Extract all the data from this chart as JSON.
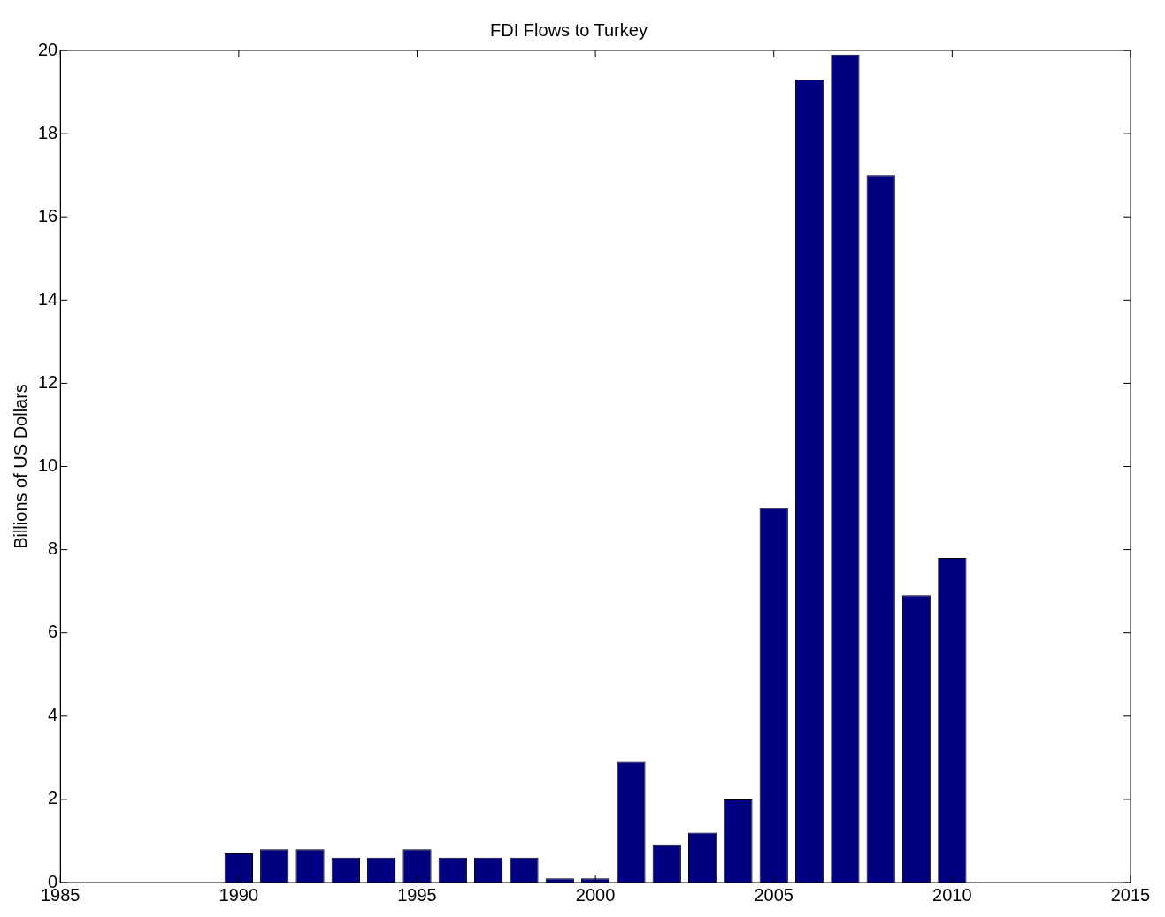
{
  "chart_data": {
    "type": "bar",
    "title": "FDI Flows to Turkey",
    "ylabel": "Billions of US Dollars",
    "x": [
      1990,
      1991,
      1992,
      1993,
      1994,
      1995,
      1996,
      1997,
      1998,
      1999,
      2000,
      2001,
      2002,
      2003,
      2004,
      2005,
      2006,
      2007,
      2008,
      2009,
      2010
    ],
    "values": [
      0.7,
      0.8,
      0.8,
      0.6,
      0.6,
      0.8,
      0.6,
      0.6,
      0.6,
      0.1,
      0.1,
      2.9,
      0.9,
      1.2,
      2.0,
      9.0,
      19.3,
      19.9,
      17.0,
      6.9,
      7.8
    ],
    "color": "#000080",
    "xlim": [
      1985,
      2015
    ],
    "xticks": [
      1985,
      1990,
      1995,
      2000,
      2005,
      2010,
      2015
    ],
    "ylim": [
      0,
      20
    ],
    "yticks": [
      0,
      2,
      4,
      6,
      8,
      10,
      12,
      14,
      16,
      18,
      20
    ],
    "grid": false,
    "legend": false
  }
}
